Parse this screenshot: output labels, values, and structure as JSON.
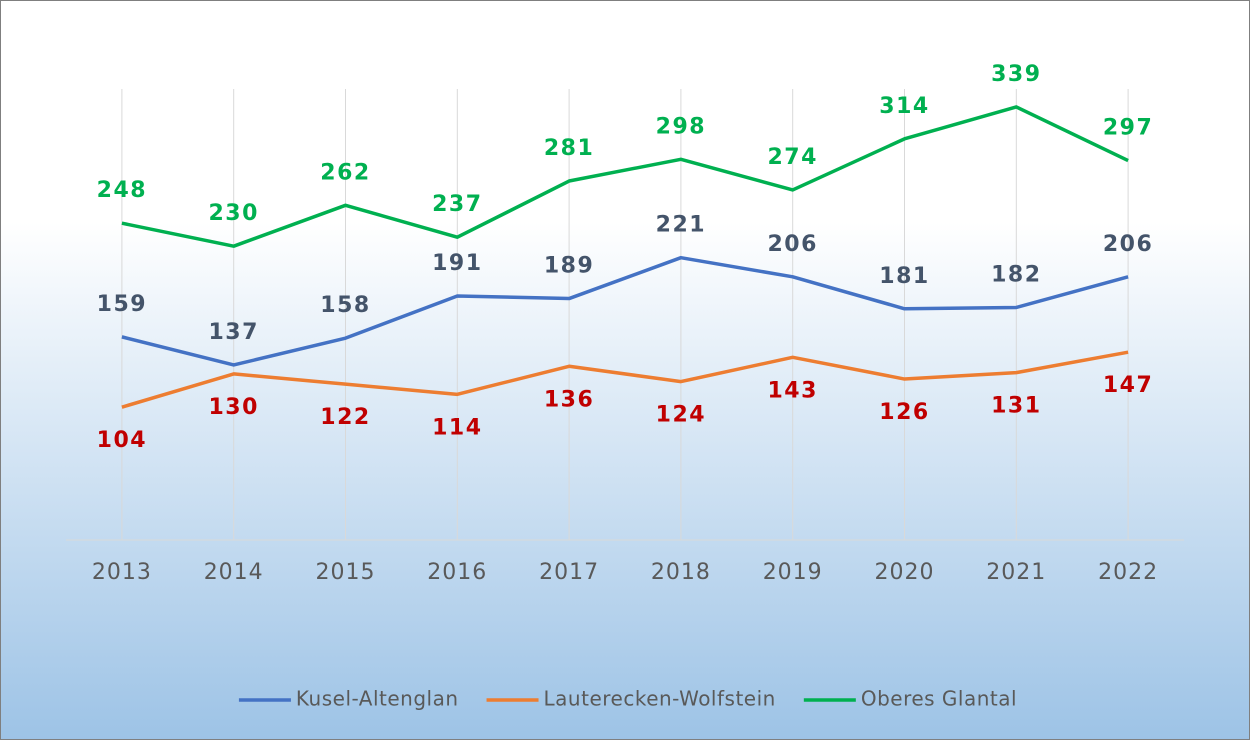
{
  "chart_data": {
    "type": "line",
    "categories": [
      "2013",
      "2014",
      "2015",
      "2016",
      "2017",
      "2018",
      "2019",
      "2020",
      "2021",
      "2022"
    ],
    "series": [
      {
        "name": "Kusel-Altenglan",
        "color": "#4472c4",
        "label_color": "#44546a",
        "label_position": "above",
        "values": [
          159,
          137,
          158,
          191,
          189,
          221,
          206,
          181,
          182,
          206
        ]
      },
      {
        "name": "Lauterecken-Wolfstein",
        "color": "#ed7d31",
        "label_color": "#c00000",
        "label_position": "below",
        "values": [
          104,
          130,
          122,
          114,
          136,
          124,
          143,
          126,
          131,
          147
        ]
      },
      {
        "name": "Oberes Glantal",
        "color": "#00b050",
        "label_color": "#00b050",
        "label_position": "above",
        "values": [
          248,
          230,
          262,
          237,
          281,
          298,
          274,
          314,
          339,
          297
        ]
      }
    ],
    "ylim": [
      0,
      400
    ],
    "legend": "bottom"
  }
}
